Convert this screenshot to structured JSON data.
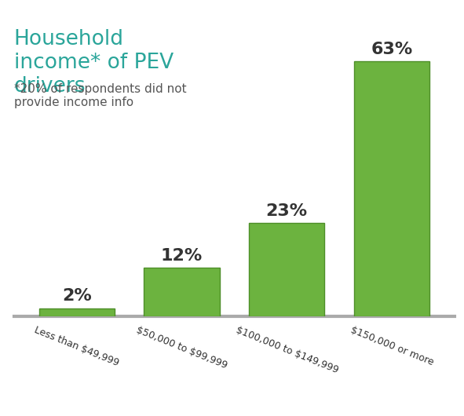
{
  "chart_data": {
    "type": "bar",
    "title": "Household income* of PEV drivers",
    "subtitle": "*20% of respondents did not provide income info",
    "categories": [
      "Less than $49,999",
      "$50,000 to $99,999",
      "$100,000 to $149,999",
      "$150,000 or more"
    ],
    "values": [
      2,
      12,
      23,
      63
    ],
    "value_labels": [
      "2%",
      "12%",
      "23%",
      "63%"
    ],
    "data_labels": true,
    "color": "#6cb33f",
    "ylim": [
      0,
      70
    ],
    "tick_labels": "x",
    "grid": false
  }
}
